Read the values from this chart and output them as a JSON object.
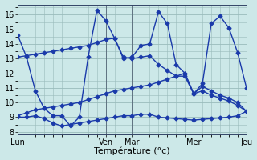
{
  "background_color": "#cce8e8",
  "grid_color": "#99bbbb",
  "line_color": "#1a3aaa",
  "marker": "D",
  "marker_size": 2.5,
  "linewidth": 1.0,
  "xlabel": "Température (°c)",
  "xlabel_fontsize": 8,
  "tick_label_fontsize": 7,
  "day_labels": [
    "Lun",
    "Ven",
    "Mar",
    "Mer",
    "Jeu"
  ],
  "day_positions": [
    0,
    10,
    13,
    20,
    26
  ],
  "ylim": [
    7.8,
    16.7
  ],
  "yticks": [
    8,
    9,
    10,
    11,
    12,
    13,
    14,
    15,
    16
  ],
  "n_points": 27,
  "xlim": [
    0,
    26
  ],
  "series1_x": [
    0,
    1,
    2,
    3,
    4,
    5,
    6,
    7,
    8,
    9,
    10,
    11,
    12,
    13,
    14,
    15,
    16,
    17,
    18,
    19,
    20,
    21,
    22,
    23,
    24,
    25,
    26
  ],
  "series1_y": [
    14.6,
    13.1,
    10.8,
    9.6,
    9.1,
    9.1,
    8.4,
    9.0,
    13.1,
    16.3,
    15.6,
    14.4,
    13.0,
    13.1,
    13.9,
    14.0,
    16.2,
    15.4,
    12.6,
    12.0,
    10.6,
    11.3,
    15.4,
    15.9,
    15.1,
    13.4,
    11.0
  ],
  "series2_x": [
    0,
    1,
    2,
    3,
    4,
    5,
    6,
    7,
    8,
    9,
    10,
    11,
    12,
    13,
    14,
    15,
    16,
    17,
    18,
    19,
    20,
    21,
    22,
    23,
    24,
    25,
    26
  ],
  "series2_y": [
    13.1,
    13.2,
    13.3,
    13.4,
    13.5,
    13.6,
    13.7,
    13.8,
    13.9,
    14.1,
    14.3,
    14.4,
    13.1,
    13.0,
    13.1,
    13.2,
    12.6,
    12.2,
    11.8,
    11.8,
    10.6,
    11.1,
    10.8,
    10.5,
    10.3,
    10.0,
    9.4
  ],
  "series3_x": [
    0,
    1,
    2,
    3,
    4,
    5,
    6,
    7,
    8,
    9,
    10,
    11,
    12,
    13,
    14,
    15,
    16,
    17,
    18,
    19,
    20,
    21,
    22,
    23,
    24,
    25,
    26
  ],
  "series3_y": [
    9.1,
    9.3,
    9.5,
    9.6,
    9.7,
    9.8,
    9.9,
    10.0,
    10.2,
    10.4,
    10.6,
    10.8,
    10.9,
    11.0,
    11.1,
    11.2,
    11.4,
    11.6,
    11.8,
    12.0,
    10.6,
    10.8,
    10.5,
    10.3,
    10.1,
    9.8,
    9.4
  ],
  "series4_x": [
    0,
    1,
    2,
    3,
    4,
    5,
    6,
    7,
    8,
    9,
    10,
    11,
    12,
    13,
    14,
    15,
    16,
    17,
    18,
    19,
    20,
    21,
    22,
    23,
    24,
    25,
    26
  ],
  "series4_y": [
    9.0,
    9.0,
    9.1,
    8.9,
    8.6,
    8.4,
    8.5,
    8.6,
    8.7,
    8.8,
    8.9,
    9.0,
    9.1,
    9.1,
    9.2,
    9.2,
    9.0,
    8.95,
    8.9,
    8.85,
    8.8,
    8.85,
    8.9,
    8.95,
    9.0,
    9.1,
    9.4
  ]
}
